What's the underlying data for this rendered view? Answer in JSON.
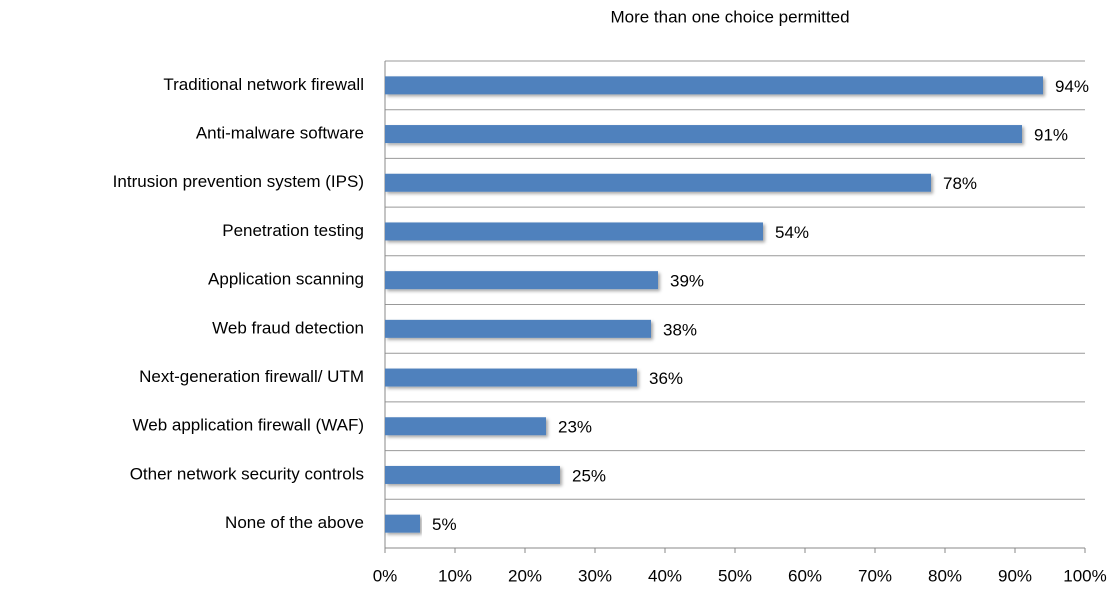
{
  "chart_data": {
    "type": "bar",
    "orientation": "horizontal",
    "subtitle": "More than one choice permitted",
    "categories": [
      "Traditional network firewall",
      "Anti-malware software",
      "Intrusion prevention system (IPS)",
      "Penetration testing",
      "Application scanning",
      "Web fraud detection",
      "Next-generation firewall/ UTM",
      "Web application firewall (WAF)",
      "Other network security controls",
      "None of the above"
    ],
    "values": [
      94,
      91,
      78,
      54,
      39,
      38,
      36,
      23,
      25,
      5
    ],
    "value_labels": [
      "94%",
      "91%",
      "78%",
      "54%",
      "39%",
      "38%",
      "36%",
      "23%",
      "25%",
      "5%"
    ],
    "color": "#4f81bd",
    "xlim": [
      0,
      100
    ],
    "xticks": [
      {
        "value": 0,
        "label": "0%"
      },
      {
        "value": 10,
        "label": "10%"
      },
      {
        "value": 20,
        "label": "20%"
      },
      {
        "value": 30,
        "label": "30%"
      },
      {
        "value": 40,
        "label": "40%"
      },
      {
        "value": 50,
        "label": "50%"
      },
      {
        "value": 60,
        "label": "60%"
      },
      {
        "value": 70,
        "label": "70%"
      },
      {
        "value": 80,
        "label": "80%"
      },
      {
        "value": 90,
        "label": "90%"
      },
      {
        "value": 100,
        "label": "100%"
      }
    ]
  }
}
